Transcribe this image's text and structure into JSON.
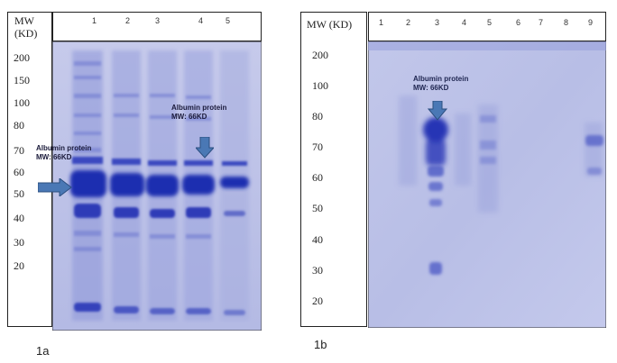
{
  "panel_a": {
    "header": "MW\n(KD)",
    "mw_markers": [
      "200",
      "150",
      "100",
      "80",
      "70",
      "60",
      "50",
      "40",
      "30",
      "20"
    ],
    "lanes": [
      "1",
      "2",
      "3",
      "4",
      "5"
    ],
    "annotation_left": "Albumin protein\nMW: 66KD",
    "annotation_right": "Albumin protein\nMW: 66KD",
    "caption": "1a"
  },
  "panel_b": {
    "header": "MW (KD)",
    "mw_markers": [
      "200",
      "100",
      "80",
      "70",
      "60",
      "50",
      "40",
      "30",
      "20"
    ],
    "lanes": [
      "1",
      "2",
      "3",
      "4",
      "5",
      "6",
      "7",
      "8",
      "9"
    ],
    "annotation": "Albumin protein\nMW: 66KD",
    "caption": "1b"
  },
  "colors": {
    "gel_background": "#b9bfe6",
    "band_dark": "#1f2fb0",
    "arrow": "#4a78b5"
  }
}
